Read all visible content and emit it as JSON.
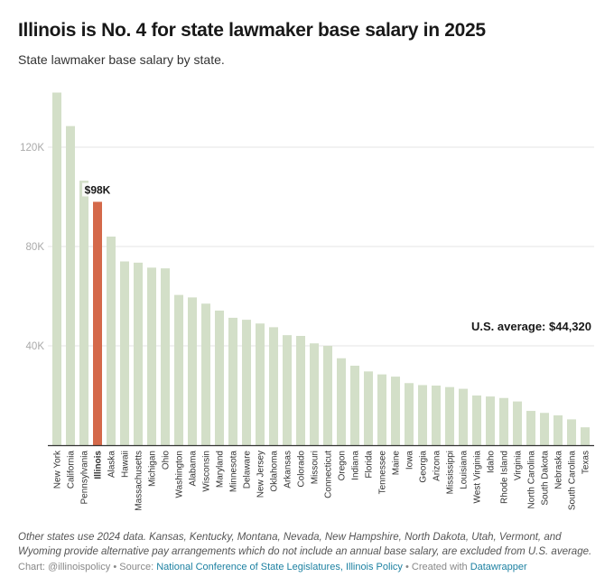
{
  "header": {
    "title": "Illinois is No. 4 for state lawmaker base salary in 2025",
    "subtitle": "State lawmaker base salary by state."
  },
  "colors": {
    "bar": "#d3dfc8",
    "highlight": "#d4694a",
    "grid": "#eeeeee",
    "axis": "#333333",
    "link": "#1d81a2"
  },
  "chart_data": {
    "type": "bar",
    "title": "Illinois is No. 4 for state lawmaker base salary in 2025",
    "subtitle": "State lawmaker base salary by state.",
    "xlabel": "",
    "ylabel": "",
    "ylim": [
      0,
      142000
    ],
    "yticks": [
      40000,
      80000,
      120000
    ],
    "ytick_labels": [
      "40K",
      "80K",
      "120K"
    ],
    "grid": true,
    "legend": "none",
    "highlight_category": "Illinois",
    "categories": [
      "New York",
      "California",
      "Pennsylvania",
      "Illinois",
      "Alaska",
      "Hawaii",
      "Massachusetts",
      "Michigan",
      "Ohio",
      "Washington",
      "Alabama",
      "Wisconsin",
      "Maryland",
      "Minnesota",
      "Delaware",
      "New Jersey",
      "Oklahoma",
      "Arkansas",
      "Colorado",
      "Missouri",
      "Connecticut",
      "Oregon",
      "Indiana",
      "Florida",
      "Tennessee",
      "Maine",
      "Iowa",
      "Georgia",
      "Arizona",
      "Mississippi",
      "Louisiana",
      "West Virginia",
      "Idaho",
      "Rhode Island",
      "Virginia",
      "North Carolina",
      "South Dakota",
      "Nebraska",
      "South Carolina",
      "Texas"
    ],
    "values": [
      142000,
      128500,
      106500,
      98000,
      84000,
      74000,
      73500,
      71500,
      71200,
      60500,
      59500,
      57000,
      54200,
      51300,
      50500,
      49000,
      47500,
      44300,
      44000,
      41000,
      40000,
      35000,
      32000,
      29700,
      28500,
      27600,
      25000,
      24200,
      24000,
      23400,
      22700,
      20000,
      19600,
      19000,
      17600,
      13800,
      13000,
      12000,
      10400,
      7200
    ],
    "annotations": [
      {
        "text": "$98K",
        "category": "Illinois"
      },
      {
        "text": "U.S. average: $44,320",
        "value": 44320
      }
    ]
  },
  "footer": {
    "notes": "Other states use 2024 data. Kansas, Kentucky, Montana, Nevada, New Hampshire, North Dakota, Utah, Vermont, and Wyoming provide alternative pay arrangements which do not include an annual base salary, are excluded from U.S. average.",
    "chart_credit": "Chart: @illinoispolicy",
    "separator": " • ",
    "source_label": "Source: ",
    "source_link": "National Conference of State Legislatures, Illinois Policy",
    "created_label": "Created with ",
    "created_link": "Datawrapper"
  }
}
